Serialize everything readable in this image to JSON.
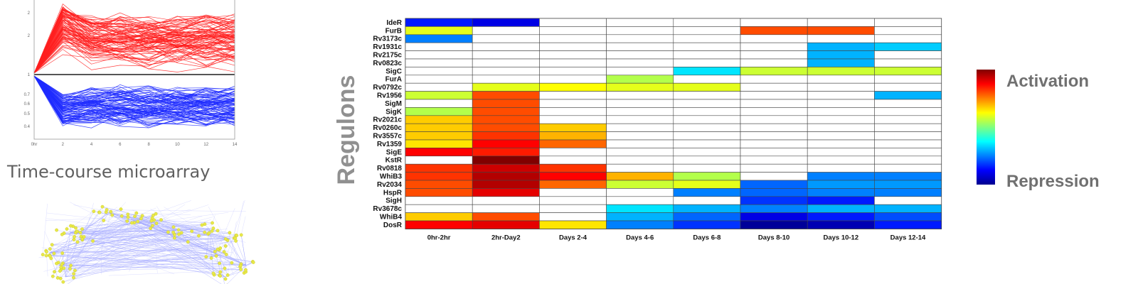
{
  "left": {
    "microarray_caption": "Time-course microarray",
    "line_plot_ticks": {
      "y": [
        "2",
        "2",
        "1",
        "0.7",
        "0.6",
        "0.5",
        "0.4"
      ],
      "x": [
        "0hr",
        "2",
        "4",
        "6",
        "8",
        "10",
        "12",
        "14"
      ]
    }
  },
  "colorbar": {
    "top_label": "Activation",
    "bottom_label": "Repression"
  },
  "chart_data": {
    "type": "heatmap",
    "title": "",
    "ylabel": "Regulons",
    "xlabel": "",
    "columns": [
      "0hr-2hr",
      "2hr-Day2",
      "Days 2-4",
      "Days 4-6",
      "Days 6-8",
      "Days 8-10",
      "Days 10-12",
      "Days 12-14"
    ],
    "rows": [
      "IdeR",
      "FurB",
      "Rv3173c",
      "Rv1931c",
      "Rv2175c",
      "Rv0823c",
      "SigC",
      "FurA",
      "Rv0792c",
      "Rv1956",
      "SigM",
      "SigK",
      "Rv2021c",
      "Rv0260c",
      "Rv3557c",
      "Rv1359",
      "SigE",
      "KstR",
      "Rv0818",
      "WhiB3",
      "Rv2034",
      "HspR",
      "SigH",
      "Rv3678c",
      "WhiB4",
      "DosR"
    ],
    "value_range": [
      -1,
      1
    ],
    "values": [
      [
        -0.7,
        -0.8,
        null,
        null,
        null,
        null,
        null,
        null
      ],
      [
        0.2,
        null,
        null,
        null,
        null,
        0.6,
        0.6,
        null
      ],
      [
        -0.5,
        null,
        null,
        null,
        null,
        null,
        null,
        null
      ],
      [
        null,
        null,
        null,
        null,
        null,
        null,
        -0.4,
        -0.35
      ],
      [
        null,
        null,
        null,
        null,
        null,
        null,
        -0.4,
        null
      ],
      [
        null,
        null,
        null,
        null,
        null,
        null,
        -0.4,
        null
      ],
      [
        null,
        null,
        null,
        null,
        -0.3,
        0.15,
        0.15,
        0.15
      ],
      [
        null,
        null,
        null,
        0.1,
        null,
        null,
        null,
        null
      ],
      [
        null,
        0.2,
        0.25,
        0.2,
        0.2,
        null,
        null,
        null
      ],
      [
        0.15,
        0.6,
        null,
        null,
        null,
        null,
        null,
        -0.4
      ],
      [
        null,
        0.6,
        null,
        null,
        null,
        null,
        null,
        null
      ],
      [
        0.1,
        0.6,
        null,
        null,
        null,
        null,
        null,
        null
      ],
      [
        0.35,
        0.6,
        null,
        null,
        null,
        null,
        null,
        null
      ],
      [
        0.35,
        0.6,
        0.35,
        null,
        null,
        null,
        null,
        null
      ],
      [
        0.35,
        0.65,
        0.4,
        null,
        null,
        null,
        null,
        null
      ],
      [
        0.3,
        0.75,
        0.55,
        null,
        null,
        null,
        null,
        null
      ],
      [
        0.75,
        0.7,
        null,
        null,
        null,
        null,
        null,
        null
      ],
      [
        null,
        1.0,
        null,
        null,
        null,
        null,
        null,
        null
      ],
      [
        0.65,
        0.85,
        0.65,
        null,
        null,
        null,
        null,
        null
      ],
      [
        0.65,
        0.9,
        0.75,
        0.4,
        0.1,
        null,
        -0.5,
        -0.5
      ],
      [
        0.6,
        0.9,
        0.55,
        0.15,
        0.2,
        -0.55,
        -0.45,
        -0.45
      ],
      [
        0.6,
        0.8,
        null,
        null,
        -0.5,
        -0.55,
        -0.5,
        -0.5
      ],
      [
        null,
        null,
        null,
        null,
        null,
        -0.65,
        -0.7,
        null
      ],
      [
        null,
        null,
        null,
        -0.3,
        -0.4,
        -0.5,
        -0.4,
        -0.4
      ],
      [
        0.35,
        0.6,
        null,
        -0.4,
        -0.55,
        -0.8,
        -0.7,
        -0.6
      ],
      [
        0.75,
        0.8,
        0.3,
        -0.5,
        -0.65,
        -0.95,
        -0.9,
        -0.7
      ]
    ]
  }
}
